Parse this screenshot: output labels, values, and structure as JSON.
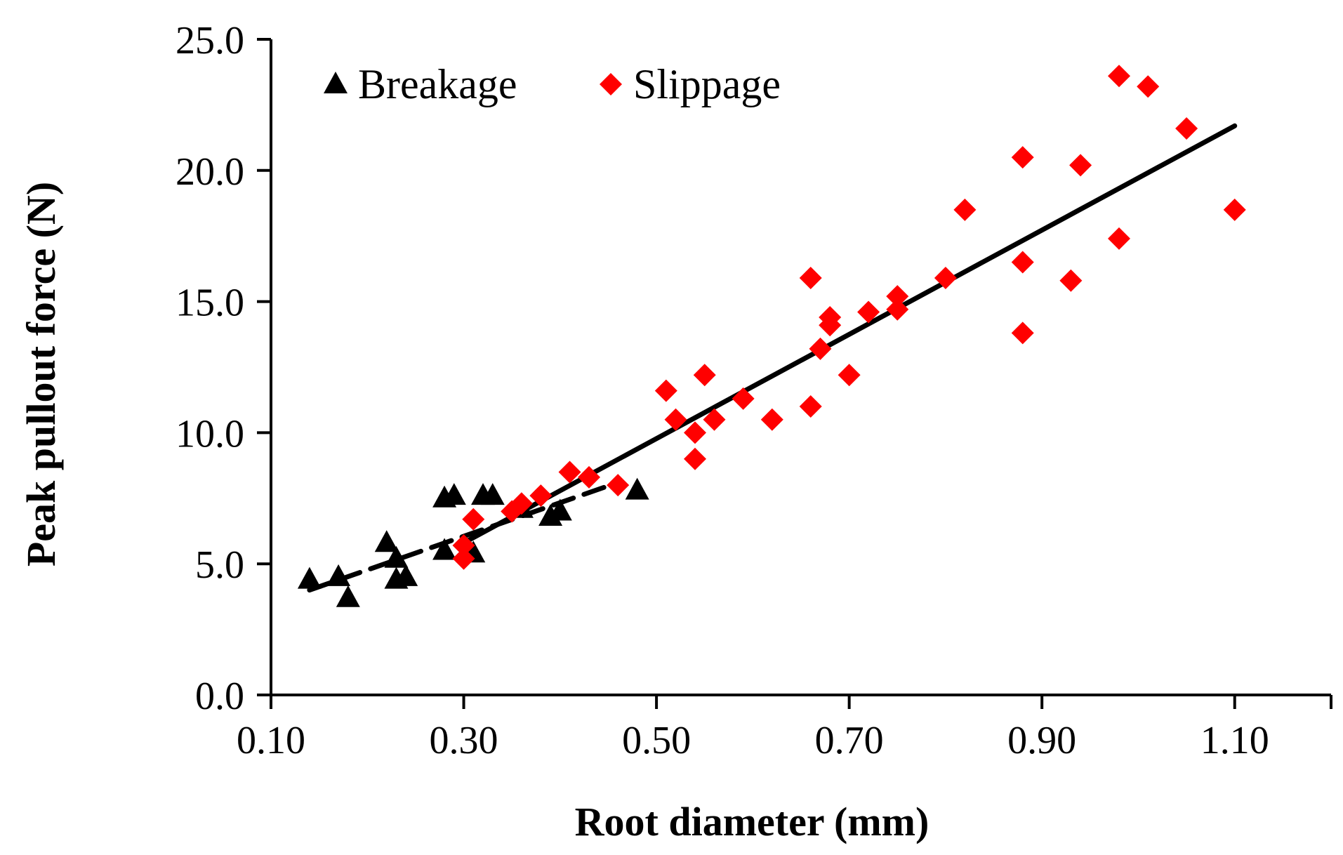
{
  "chart_data": {
    "type": "scatter",
    "xlabel": "Root diameter (mm)",
    "ylabel": "Peak pullout force (N)",
    "xlim": [
      0.1,
      1.2
    ],
    "ylim": [
      0,
      25
    ],
    "xticks": [
      "0.10",
      "0.30",
      "0.50",
      "0.70",
      "0.90",
      "1.10"
    ],
    "xtick_values": [
      0.1,
      0.3,
      0.5,
      0.7,
      0.9,
      1.1
    ],
    "yticks": [
      "0.0",
      "5.0",
      "10.0",
      "15.0",
      "20.0",
      "25.0"
    ],
    "ytick_values": [
      0,
      5,
      10,
      15,
      20,
      25
    ],
    "grid": false,
    "legend_position": "top-left",
    "series": [
      {
        "name": "Breakage",
        "marker": "triangle",
        "color": "#000000",
        "points": [
          [
            0.14,
            4.4
          ],
          [
            0.17,
            4.5
          ],
          [
            0.18,
            3.7
          ],
          [
            0.22,
            5.8
          ],
          [
            0.23,
            5.2
          ],
          [
            0.23,
            4.4
          ],
          [
            0.24,
            4.5
          ],
          [
            0.28,
            7.5
          ],
          [
            0.29,
            7.6
          ],
          [
            0.28,
            5.5
          ],
          [
            0.31,
            5.4
          ],
          [
            0.32,
            7.6
          ],
          [
            0.33,
            7.6
          ],
          [
            0.36,
            7.1
          ],
          [
            0.39,
            6.8
          ],
          [
            0.4,
            7.0
          ],
          [
            0.48,
            7.8
          ]
        ],
        "trendline": {
          "style": "dashed",
          "x": [
            0.14,
            0.46
          ],
          "y": [
            4.0,
            8.1
          ]
        }
      },
      {
        "name": "Slippage",
        "marker": "diamond",
        "color": "#ff0000",
        "points": [
          [
            0.3,
            5.2
          ],
          [
            0.3,
            5.7
          ],
          [
            0.31,
            6.7
          ],
          [
            0.35,
            7.0
          ],
          [
            0.36,
            7.3
          ],
          [
            0.38,
            7.6
          ],
          [
            0.41,
            8.5
          ],
          [
            0.43,
            8.3
          ],
          [
            0.46,
            8.0
          ],
          [
            0.51,
            11.6
          ],
          [
            0.52,
            10.5
          ],
          [
            0.54,
            10.0
          ],
          [
            0.54,
            9.0
          ],
          [
            0.55,
            12.2
          ],
          [
            0.56,
            10.5
          ],
          [
            0.59,
            11.3
          ],
          [
            0.62,
            10.5
          ],
          [
            0.66,
            15.9
          ],
          [
            0.66,
            11.0
          ],
          [
            0.67,
            13.2
          ],
          [
            0.68,
            14.1
          ],
          [
            0.68,
            14.4
          ],
          [
            0.7,
            12.2
          ],
          [
            0.72,
            14.6
          ],
          [
            0.75,
            15.2
          ],
          [
            0.75,
            14.7
          ],
          [
            0.8,
            15.9
          ],
          [
            0.82,
            18.5
          ],
          [
            0.88,
            20.5
          ],
          [
            0.88,
            16.5
          ],
          [
            0.88,
            13.8
          ],
          [
            0.93,
            15.8
          ],
          [
            0.94,
            20.2
          ],
          [
            0.98,
            23.6
          ],
          [
            0.98,
            17.4
          ],
          [
            1.01,
            23.2
          ],
          [
            1.05,
            21.6
          ],
          [
            1.1,
            18.5
          ]
        ],
        "trendline": {
          "style": "solid",
          "x": [
            0.3,
            1.1
          ],
          "y": [
            5.8,
            21.7
          ]
        }
      }
    ]
  }
}
